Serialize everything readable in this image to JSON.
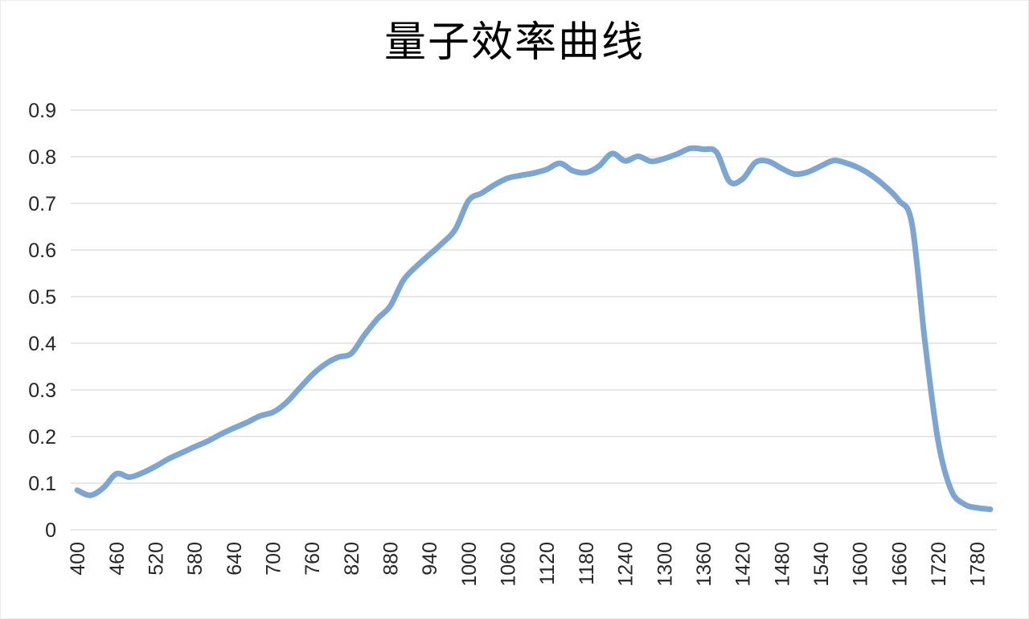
{
  "chart_data": {
    "type": "line",
    "title": "量子效率曲线",
    "xlabel": "",
    "ylabel": "",
    "legend": "none",
    "grid": true,
    "ylim": [
      0,
      0.9
    ],
    "ytick_step": 0.1,
    "ytick_labels": [
      "0",
      "0.1",
      "0.2",
      "0.3",
      "0.4",
      "0.5",
      "0.6",
      "0.7",
      "0.8",
      "0.9"
    ],
    "xtick_every": 3,
    "xtick_labels": [
      "400",
      "460",
      "520",
      "580",
      "640",
      "700",
      "760",
      "820",
      "880",
      "940",
      "1000",
      "1060",
      "1120",
      "1180",
      "1240",
      "1300",
      "1360",
      "1420",
      "1480",
      "1540",
      "1600",
      "1660",
      "1720",
      "1780"
    ],
    "x": [
      400,
      420,
      440,
      460,
      480,
      500,
      520,
      540,
      560,
      580,
      600,
      620,
      640,
      660,
      680,
      700,
      720,
      740,
      760,
      780,
      800,
      820,
      840,
      860,
      880,
      900,
      920,
      940,
      960,
      980,
      1000,
      1020,
      1040,
      1060,
      1080,
      1100,
      1120,
      1140,
      1160,
      1180,
      1200,
      1220,
      1240,
      1260,
      1280,
      1300,
      1320,
      1340,
      1360,
      1380,
      1400,
      1420,
      1440,
      1460,
      1480,
      1500,
      1520,
      1540,
      1560,
      1580,
      1600,
      1620,
      1640,
      1660,
      1680,
      1700,
      1720,
      1740,
      1760,
      1780,
      1800
    ],
    "values": [
      0.085,
      0.074,
      0.09,
      0.12,
      0.113,
      0.122,
      0.136,
      0.152,
      0.165,
      0.178,
      0.19,
      0.205,
      0.218,
      0.23,
      0.244,
      0.252,
      0.272,
      0.302,
      0.332,
      0.355,
      0.37,
      0.378,
      0.417,
      0.452,
      0.48,
      0.535,
      0.565,
      0.59,
      0.615,
      0.645,
      0.706,
      0.722,
      0.74,
      0.754,
      0.76,
      0.765,
      0.773,
      0.786,
      0.77,
      0.766,
      0.78,
      0.807,
      0.791,
      0.801,
      0.79,
      0.796,
      0.806,
      0.818,
      0.816,
      0.81,
      0.747,
      0.752,
      0.788,
      0.79,
      0.775,
      0.763,
      0.767,
      0.78,
      0.792,
      0.786,
      0.775,
      0.758,
      0.735,
      0.706,
      0.655,
      0.4,
      0.19,
      0.085,
      0.055,
      0.047,
      0.044
    ],
    "colors": {
      "line": "#7CA5D2",
      "grid": "#D9D9D9",
      "text": "#262626",
      "title": "#000000",
      "background": "#FFFFFF"
    }
  }
}
